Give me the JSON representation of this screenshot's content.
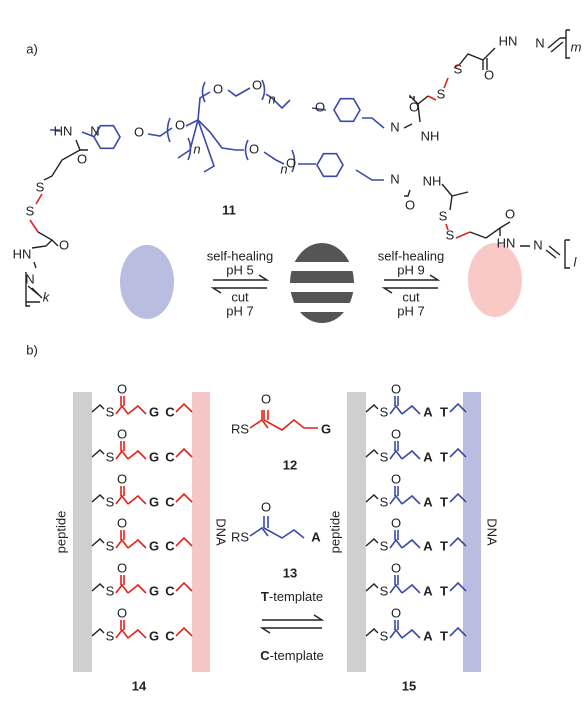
{
  "panel_a": {
    "label": "a)",
    "compound": "11",
    "m": "m",
    "k": "k",
    "l": "l",
    "atoms": [
      "HN",
      "N",
      "O",
      "S",
      "S",
      "O",
      "N",
      "NH",
      "O",
      "O",
      "O",
      "O",
      "O",
      "O",
      "O",
      "N",
      "NH",
      "O",
      "S",
      "S",
      "O",
      "HN",
      "N",
      "HN",
      "N",
      "O",
      "S",
      "S",
      "O",
      "HN",
      "N"
    ],
    "repeats": [
      "n",
      "n",
      "n"
    ],
    "left_conditions": {
      "top": [
        "self-healing",
        "pH 5"
      ],
      "bottom": [
        "cut",
        "pH 7"
      ]
    },
    "right_conditions": {
      "top": [
        "self-healing",
        "pH 9"
      ],
      "bottom": [
        "cut",
        "pH 7"
      ]
    }
  },
  "panel_b": {
    "label": "b)",
    "left": {
      "compound": "14",
      "peptide": "peptide",
      "dna": "DNA",
      "rows": [
        [
          "S",
          "O",
          "G",
          "C"
        ],
        [
          "S",
          "O",
          "G",
          "C"
        ],
        [
          "S",
          "O",
          "G",
          "C"
        ],
        [
          "S",
          "O",
          "G",
          "C"
        ],
        [
          "S",
          "O",
          "G",
          "C"
        ],
        [
          "S",
          "O",
          "G",
          "C"
        ]
      ]
    },
    "right": {
      "compound": "15",
      "peptide": "peptide",
      "dna": "DNA",
      "rows": [
        [
          "S",
          "O",
          "A",
          "T"
        ],
        [
          "S",
          "O",
          "A",
          "T"
        ],
        [
          "S",
          "O",
          "A",
          "T"
        ],
        [
          "S",
          "O",
          "A",
          "T"
        ],
        [
          "S",
          "O",
          "A",
          "T"
        ],
        [
          "S",
          "O",
          "A",
          "T"
        ]
      ]
    },
    "reagent_12": {
      "o": "O",
      "rs": "RS",
      "base": "G",
      "label": "12"
    },
    "reagent_13": {
      "o": "O",
      "rs": "RS",
      "base": "A",
      "label": "13"
    },
    "t_template": {
      "letter": "T",
      "text": "-template"
    },
    "c_template": {
      "letter": "C",
      "text": "-template"
    }
  }
}
